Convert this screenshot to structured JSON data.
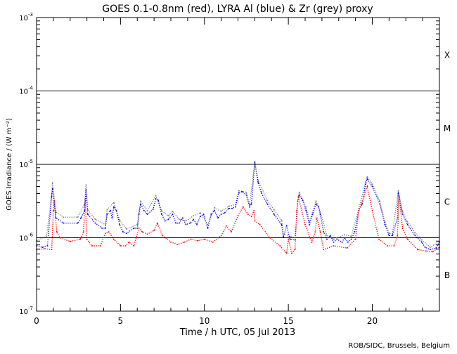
{
  "chart_data": {
    "type": "scatter",
    "title": "GOES 0.1-0.8nm (red), LYRA Al (blue) & Zr (grey) proxy",
    "xlabel": "Time / h UTC, 05 Jul 2013",
    "ylabel": "GOES Irradiance / (W m⁻²)",
    "credit": "ROB/SIDC, Brussels, Belgium",
    "xlim": [
      0,
      24
    ],
    "ylim_log10": [
      -7,
      -3
    ],
    "yscale": "log",
    "x_ticks": [
      0,
      5,
      10,
      15,
      20
    ],
    "x_tick_labels": [
      "0",
      "5",
      "10",
      "15",
      "20"
    ],
    "y_ticks": [
      {
        "base": "10",
        "exp": "-3",
        "log10": -3
      },
      {
        "base": "10",
        "exp": "-4",
        "log10": -4
      },
      {
        "base": "10",
        "exp": "-5",
        "log10": -5
      },
      {
        "base": "10",
        "exp": "-6",
        "log10": -6
      },
      {
        "base": "10",
        "exp": "-7",
        "log10": -7
      }
    ],
    "reference_lines_log10": [
      -4,
      -5,
      -6
    ],
    "flare_classes": [
      {
        "label": "X",
        "log10": -3.5
      },
      {
        "label": "M",
        "log10": -4.5
      },
      {
        "label": "C",
        "log10": -5.5
      },
      {
        "label": "B",
        "log10": -6.5
      }
    ],
    "series": [
      {
        "name": "LYRA Zr proxy",
        "color": "#808080",
        "value_unit": "log10(W m^-2)",
        "points": [
          [
            0,
            -6.04
          ],
          [
            0.6,
            -5.98
          ],
          [
            0.9,
            -5.4
          ],
          [
            0.95,
            -5.25
          ],
          [
            1.15,
            -5.65
          ],
          [
            1.6,
            -5.72
          ],
          [
            2.45,
            -5.72
          ],
          [
            2.85,
            -5.55
          ],
          [
            2.95,
            -5.28
          ],
          [
            3.05,
            -5.62
          ],
          [
            3.5,
            -5.75
          ],
          [
            4.1,
            -5.82
          ],
          [
            4.2,
            -5.62
          ],
          [
            4.6,
            -5.52
          ],
          [
            4.95,
            -5.76
          ],
          [
            5.35,
            -5.88
          ],
          [
            6.0,
            -5.82
          ],
          [
            6.2,
            -5.5
          ],
          [
            6.6,
            -5.63
          ],
          [
            7.1,
            -5.43
          ],
          [
            7.45,
            -5.63
          ],
          [
            7.85,
            -5.7
          ],
          [
            8.1,
            -5.64
          ],
          [
            8.5,
            -5.75
          ],
          [
            8.9,
            -5.77
          ],
          [
            9.35,
            -5.7
          ],
          [
            9.75,
            -5.66
          ],
          [
            10.2,
            -5.82
          ],
          [
            10.6,
            -5.59
          ],
          [
            11.0,
            -5.64
          ],
          [
            11.45,
            -5.57
          ],
          [
            11.85,
            -5.55
          ],
          [
            12.05,
            -5.36
          ],
          [
            12.5,
            -5.38
          ],
          [
            12.7,
            -5.55
          ],
          [
            13.0,
            -4.96
          ],
          [
            13.2,
            -5.22
          ],
          [
            13.75,
            -5.49
          ],
          [
            14.15,
            -5.62
          ],
          [
            14.6,
            -5.76
          ],
          [
            14.7,
            -5.95
          ],
          [
            15.1,
            -5.98
          ],
          [
            15.4,
            -6.0
          ],
          [
            15.55,
            -5.5
          ],
          [
            15.65,
            -5.38
          ],
          [
            16.05,
            -5.58
          ],
          [
            16.25,
            -5.78
          ],
          [
            16.65,
            -5.5
          ],
          [
            16.9,
            -5.64
          ],
          [
            17.3,
            -5.97
          ],
          [
            17.7,
            -6.02
          ],
          [
            18.35,
            -5.96
          ],
          [
            18.75,
            -5.98
          ],
          [
            19.2,
            -5.6
          ],
          [
            19.6,
            -5.24
          ],
          [
            19.7,
            -5.17
          ],
          [
            20.0,
            -5.27
          ],
          [
            20.45,
            -5.5
          ],
          [
            20.75,
            -5.78
          ],
          [
            21.0,
            -5.94
          ],
          [
            21.2,
            -5.94
          ],
          [
            21.55,
            -5.36
          ],
          [
            21.8,
            -5.64
          ],
          [
            22.1,
            -5.78
          ],
          [
            22.55,
            -5.93
          ],
          [
            22.95,
            -6.03
          ],
          [
            23.45,
            -6.13
          ],
          [
            24.0,
            -6.05
          ]
        ]
      },
      {
        "name": "LYRA Al proxy",
        "color": "#0000ff",
        "value_unit": "log10(W m^-2)",
        "points": [
          [
            0,
            -6.11
          ],
          [
            0.35,
            -6.13
          ],
          [
            0.65,
            -6.11
          ],
          [
            0.9,
            -5.44
          ],
          [
            0.95,
            -5.33
          ],
          [
            1.15,
            -5.73
          ],
          [
            1.6,
            -5.8
          ],
          [
            2.45,
            -5.8
          ],
          [
            2.65,
            -5.73
          ],
          [
            2.85,
            -5.63
          ],
          [
            2.95,
            -5.35
          ],
          [
            3.05,
            -5.68
          ],
          [
            3.5,
            -5.8
          ],
          [
            3.9,
            -5.87
          ],
          [
            4.1,
            -5.87
          ],
          [
            4.2,
            -5.68
          ],
          [
            4.4,
            -5.63
          ],
          [
            4.5,
            -5.73
          ],
          [
            4.6,
            -5.58
          ],
          [
            4.75,
            -5.63
          ],
          [
            4.95,
            -5.82
          ],
          [
            5.15,
            -5.92
          ],
          [
            5.35,
            -5.94
          ],
          [
            5.8,
            -5.87
          ],
          [
            6.0,
            -5.87
          ],
          [
            6.1,
            -5.68
          ],
          [
            6.2,
            -5.54
          ],
          [
            6.4,
            -5.63
          ],
          [
            6.6,
            -5.68
          ],
          [
            6.95,
            -5.61
          ],
          [
            7.1,
            -5.47
          ],
          [
            7.25,
            -5.49
          ],
          [
            7.45,
            -5.68
          ],
          [
            7.65,
            -5.77
          ],
          [
            7.85,
            -5.75
          ],
          [
            8.1,
            -5.68
          ],
          [
            8.3,
            -5.8
          ],
          [
            8.5,
            -5.8
          ],
          [
            8.7,
            -5.73
          ],
          [
            8.9,
            -5.82
          ],
          [
            9.15,
            -5.8
          ],
          [
            9.35,
            -5.75
          ],
          [
            9.55,
            -5.82
          ],
          [
            9.75,
            -5.71
          ],
          [
            9.95,
            -5.68
          ],
          [
            10.2,
            -5.87
          ],
          [
            10.4,
            -5.68
          ],
          [
            10.6,
            -5.63
          ],
          [
            10.8,
            -5.73
          ],
          [
            11.0,
            -5.68
          ],
          [
            11.2,
            -5.66
          ],
          [
            11.45,
            -5.6
          ],
          [
            11.65,
            -5.6
          ],
          [
            11.85,
            -5.58
          ],
          [
            12.05,
            -5.39
          ],
          [
            12.25,
            -5.37
          ],
          [
            12.5,
            -5.42
          ],
          [
            12.7,
            -5.58
          ],
          [
            12.8,
            -5.54
          ],
          [
            13.0,
            -4.98
          ],
          [
            13.2,
            -5.25
          ],
          [
            13.4,
            -5.39
          ],
          [
            13.75,
            -5.54
          ],
          [
            14.15,
            -5.68
          ],
          [
            14.6,
            -5.82
          ],
          [
            14.7,
            -5.99
          ],
          [
            14.9,
            -5.84
          ],
          [
            15.1,
            -6.02
          ],
          [
            15.4,
            -6.03
          ],
          [
            15.55,
            -5.54
          ],
          [
            15.65,
            -5.42
          ],
          [
            15.85,
            -5.49
          ],
          [
            16.05,
            -5.63
          ],
          [
            16.25,
            -5.82
          ],
          [
            16.45,
            -5.68
          ],
          [
            16.65,
            -5.54
          ],
          [
            16.8,
            -5.58
          ],
          [
            16.9,
            -5.68
          ],
          [
            17.1,
            -5.92
          ],
          [
            17.3,
            -6.02
          ],
          [
            17.5,
            -5.97
          ],
          [
            17.7,
            -6.06
          ],
          [
            17.9,
            -6.02
          ],
          [
            18.2,
            -6.06
          ],
          [
            18.35,
            -6.0
          ],
          [
            18.55,
            -6.06
          ],
          [
            18.75,
            -6.02
          ],
          [
            18.95,
            -5.92
          ],
          [
            19.2,
            -5.63
          ],
          [
            19.4,
            -5.54
          ],
          [
            19.6,
            -5.27
          ],
          [
            19.7,
            -5.2
          ],
          [
            20.0,
            -5.3
          ],
          [
            20.45,
            -5.54
          ],
          [
            20.75,
            -5.82
          ],
          [
            21.0,
            -5.97
          ],
          [
            21.2,
            -5.97
          ],
          [
            21.5,
            -5.73
          ],
          [
            21.55,
            -5.39
          ],
          [
            21.8,
            -5.68
          ],
          [
            22.1,
            -5.82
          ],
          [
            22.55,
            -5.97
          ],
          [
            22.95,
            -6.06
          ],
          [
            23.15,
            -6.13
          ],
          [
            23.45,
            -6.16
          ],
          [
            23.8,
            -6.14
          ],
          [
            24.0,
            -6.06
          ]
        ]
      },
      {
        "name": "GOES 0.1-0.8nm",
        "color": "#ff0000",
        "value_unit": "log10(W m^-2)",
        "points": [
          [
            0,
            -6.16
          ],
          [
            0.5,
            -6.15
          ],
          [
            0.9,
            -6.16
          ],
          [
            1.0,
            -5.63
          ],
          [
            1.05,
            -5.49
          ],
          [
            1.2,
            -5.92
          ],
          [
            1.4,
            -6.0
          ],
          [
            2.0,
            -6.05
          ],
          [
            2.6,
            -6.02
          ],
          [
            2.8,
            -5.92
          ],
          [
            2.9,
            -5.49
          ],
          [
            3.0,
            -6.02
          ],
          [
            3.3,
            -6.11
          ],
          [
            3.8,
            -6.11
          ],
          [
            4.1,
            -5.94
          ],
          [
            4.3,
            -5.92
          ],
          [
            4.6,
            -6.02
          ],
          [
            5.0,
            -6.11
          ],
          [
            5.3,
            -6.11
          ],
          [
            5.5,
            -6.06
          ],
          [
            5.8,
            -6.11
          ],
          [
            6.1,
            -5.87
          ],
          [
            6.3,
            -5.92
          ],
          [
            6.6,
            -5.95
          ],
          [
            7.0,
            -5.9
          ],
          [
            7.2,
            -5.8
          ],
          [
            7.5,
            -5.97
          ],
          [
            8.0,
            -6.06
          ],
          [
            8.4,
            -6.09
          ],
          [
            8.8,
            -6.06
          ],
          [
            9.2,
            -6.02
          ],
          [
            9.6,
            -6.04
          ],
          [
            10.0,
            -6.02
          ],
          [
            10.5,
            -6.06
          ],
          [
            11.0,
            -5.97
          ],
          [
            11.3,
            -5.84
          ],
          [
            11.6,
            -5.92
          ],
          [
            12.0,
            -5.7
          ],
          [
            12.3,
            -5.58
          ],
          [
            12.6,
            -5.68
          ],
          [
            12.8,
            -5.71
          ],
          [
            12.95,
            -5.63
          ],
          [
            13.0,
            -5.77
          ],
          [
            13.3,
            -5.82
          ],
          [
            13.9,
            -6.0
          ],
          [
            14.5,
            -6.11
          ],
          [
            14.9,
            -6.21
          ],
          [
            15.0,
            -6.02
          ],
          [
            15.2,
            -6.21
          ],
          [
            15.4,
            -6.16
          ],
          [
            15.5,
            -5.63
          ],
          [
            15.6,
            -5.44
          ],
          [
            16.0,
            -5.82
          ],
          [
            16.4,
            -6.06
          ],
          [
            16.6,
            -5.92
          ],
          [
            16.7,
            -5.73
          ],
          [
            16.9,
            -5.92
          ],
          [
            17.1,
            -6.16
          ],
          [
            17.7,
            -6.11
          ],
          [
            18.5,
            -6.14
          ],
          [
            19.0,
            -6.02
          ],
          [
            19.2,
            -5.63
          ],
          [
            19.5,
            -5.44
          ],
          [
            19.7,
            -5.3
          ],
          [
            20.0,
            -5.63
          ],
          [
            20.4,
            -6.02
          ],
          [
            20.9,
            -6.11
          ],
          [
            21.3,
            -6.11
          ],
          [
            21.5,
            -5.97
          ],
          [
            21.6,
            -5.44
          ],
          [
            21.8,
            -5.87
          ],
          [
            22.1,
            -6.02
          ],
          [
            22.7,
            -6.16
          ],
          [
            23.2,
            -6.18
          ],
          [
            23.6,
            -6.19
          ],
          [
            24.0,
            -6.13
          ]
        ]
      }
    ]
  }
}
